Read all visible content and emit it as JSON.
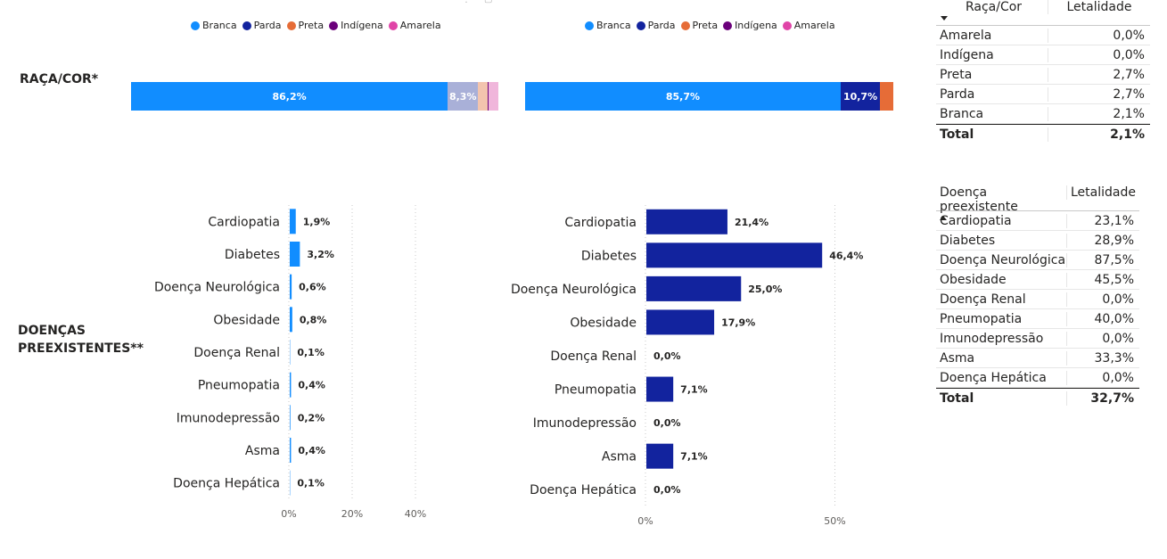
{
  "colors": {
    "branca": "#118DFF",
    "parda": "#12239E",
    "preta": "#E66C37",
    "indigena": "#6B007B",
    "amarela": "#E044A7",
    "branca_light": "#A9B0D8",
    "preta_light": "#F3C4AE",
    "amarela_light": "#F0B6DB",
    "grid": "#c8c8c8",
    "axis_text": "#605E5C"
  },
  "labels": {
    "raca_cor": "RAÇA/COR*",
    "doencas_line1": "DOENÇAS",
    "doencas_line2": "PREEXISTENTES**"
  },
  "legend": [
    {
      "label": "Branca",
      "color": "#118DFF"
    },
    {
      "label": "Parda",
      "color": "#12239E"
    },
    {
      "label": "Preta",
      "color": "#E66C37"
    },
    {
      "label": "Indígena",
      "color": "#6B007B"
    },
    {
      "label": "Amarela",
      "color": "#E044A7"
    }
  ],
  "table_raca": {
    "header": [
      "Raça/Cor",
      "Letalidade"
    ],
    "rows": [
      [
        "Amarela",
        "0,0%"
      ],
      [
        "Indígena",
        "0,0%"
      ],
      [
        "Preta",
        "2,7%"
      ],
      [
        "Parda",
        "2,7%"
      ],
      [
        "Branca",
        "2,1%"
      ]
    ],
    "total": [
      "Total",
      "2,1%"
    ]
  },
  "table_doenca": {
    "header": [
      "Doença preexistente",
      "Letalidade"
    ],
    "rows": [
      [
        "Cardiopatia",
        "23,1%"
      ],
      [
        "Diabetes",
        "28,9%"
      ],
      [
        "Doença Neurológica",
        "87,5%"
      ],
      [
        "Obesidade",
        "45,5%"
      ],
      [
        "Doença Renal",
        "0,0%"
      ],
      [
        "Pneumopatia",
        "40,0%"
      ],
      [
        "Imunodepressão",
        "0,0%"
      ],
      [
        "Asma",
        "33,3%"
      ],
      [
        "Doença Hepática",
        "0,0%"
      ]
    ],
    "total": [
      "Total",
      "32,7%"
    ]
  },
  "chart_data": [
    {
      "type": "bar",
      "orientation": "horizontal-stacked-100",
      "categories": [
        "Branca",
        "Parda",
        "Preta",
        "Indígena",
        "Amarela"
      ],
      "values": [
        86.2,
        8.3,
        2.7,
        0.2,
        2.6
      ],
      "data_labels": [
        "86,2%",
        "8,3%",
        "",
        "",
        ""
      ]
    },
    {
      "type": "bar",
      "orientation": "horizontal-stacked-100",
      "categories": [
        "Branca",
        "Parda",
        "Preta",
        "Indígena",
        "Amarela"
      ],
      "values": [
        85.7,
        10.7,
        3.6,
        0,
        0
      ],
      "data_labels": [
        "85,7%",
        "10,7%",
        "",
        "",
        ""
      ]
    },
    {
      "type": "bar",
      "orientation": "horizontal",
      "categories": [
        "Cardiopatia",
        "Diabetes",
        "Doença Neurológica",
        "Obesidade",
        "Doença Renal",
        "Pneumopatia",
        "Imunodepressão",
        "Asma",
        "Doença Hepática"
      ],
      "values": [
        1.9,
        3.2,
        0.6,
        0.8,
        0.1,
        0.4,
        0.2,
        0.4,
        0.1
      ],
      "data_labels": [
        "1,9%",
        "3,2%",
        "0,6%",
        "0,8%",
        "0,1%",
        "0,4%",
        "0,2%",
        "0,4%",
        "0,1%"
      ],
      "xlim": [
        0,
        60
      ],
      "xticks": [
        0,
        20,
        40
      ],
      "xtick_labels": [
        "0%",
        "20%",
        "40%"
      ],
      "grid": true
    },
    {
      "type": "bar",
      "orientation": "horizontal",
      "categories": [
        "Cardiopatia",
        "Diabetes",
        "Doença Neurológica",
        "Obesidade",
        "Doença Renal",
        "Pneumopatia",
        "Imunodepressão",
        "Asma",
        "Doença Hepática"
      ],
      "values": [
        21.4,
        46.4,
        25.0,
        17.9,
        0.0,
        7.1,
        0.0,
        7.1,
        0.0
      ],
      "data_labels": [
        "21,4%",
        "46,4%",
        "25,0%",
        "17,9%",
        "0,0%",
        "7,1%",
        "0,0%",
        "7,1%",
        "0,0%"
      ],
      "xlim": [
        0,
        60
      ],
      "xticks": [
        0,
        50
      ],
      "xtick_labels": [
        "0%",
        "50%"
      ],
      "grid": true
    }
  ]
}
